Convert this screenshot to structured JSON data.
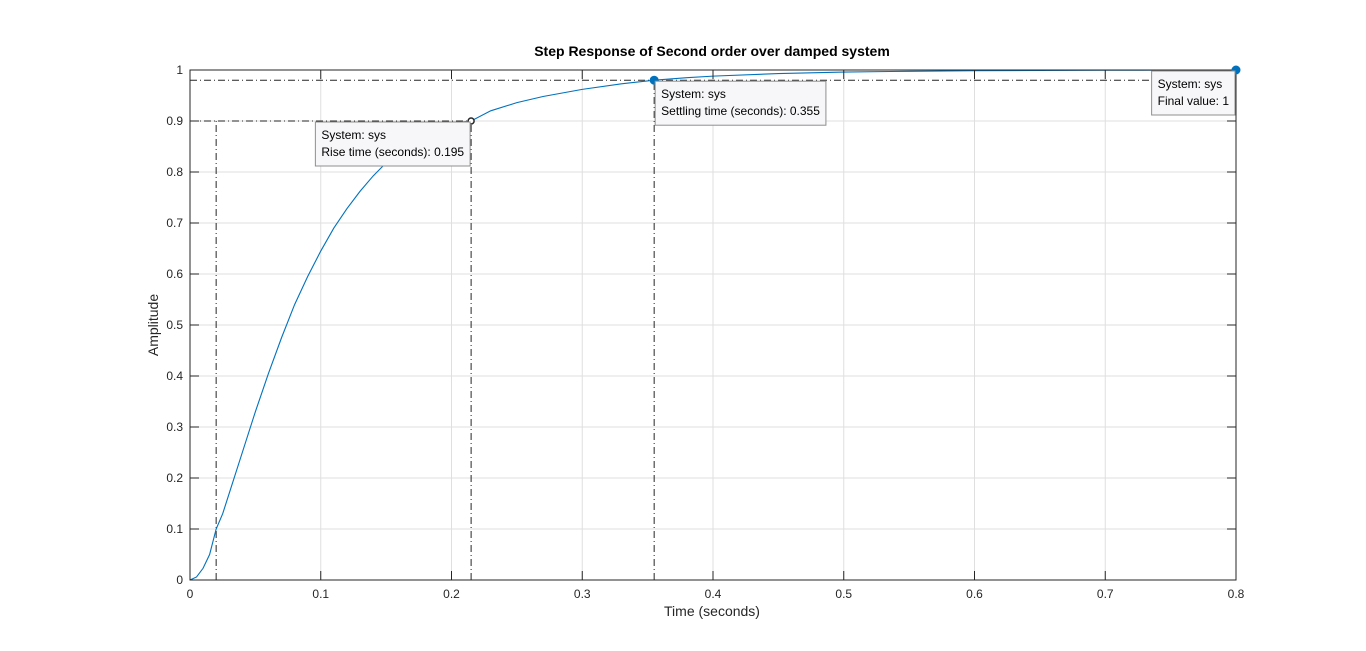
{
  "chart_data": {
    "type": "line",
    "title": "Step Response of Second order over damped system",
    "xlabel": "Time (seconds)",
    "ylabel": "Amplitude",
    "xlim": [
      0,
      0.8
    ],
    "ylim": [
      0,
      1
    ],
    "x_ticks": [
      "0",
      "0.1",
      "0.2",
      "0.3",
      "0.4",
      "0.5",
      "0.6",
      "0.7",
      "0.8"
    ],
    "y_ticks": [
      "0",
      "0.1",
      "0.2",
      "0.3",
      "0.4",
      "0.5",
      "0.6",
      "0.7",
      "0.8",
      "0.9",
      "1"
    ],
    "grid": true,
    "line_color": "#0072BD",
    "series": [
      {
        "x": [
          0,
          0.005,
          0.01,
          0.015,
          0.02,
          0.025,
          0.03,
          0.04,
          0.05,
          0.06,
          0.07,
          0.08,
          0.09,
          0.1,
          0.11,
          0.12,
          0.13,
          0.14,
          0.15,
          0.16,
          0.17,
          0.18,
          0.19,
          0.2,
          0.215,
          0.23,
          0.25,
          0.27,
          0.3,
          0.33,
          0.355,
          0.38,
          0.4,
          0.45,
          0.5,
          0.55,
          0.6,
          0.65,
          0.7,
          0.75,
          0.8
        ],
        "y": [
          0,
          0.006,
          0.023,
          0.05,
          0.1,
          0.13,
          0.17,
          0.25,
          0.33,
          0.405,
          0.475,
          0.54,
          0.595,
          0.645,
          0.69,
          0.728,
          0.762,
          0.792,
          0.818,
          0.84,
          0.858,
          0.873,
          0.886,
          0.896,
          0.9,
          0.92,
          0.936,
          0.948,
          0.962,
          0.973,
          0.98,
          0.985,
          0.988,
          0.993,
          0.996,
          0.9975,
          0.9985,
          0.9991,
          0.9995,
          0.9998,
          1.0
        ]
      }
    ],
    "reference_lines": [
      {
        "type": "h",
        "y": 0.9,
        "x0": 0,
        "x1": 0.215
      },
      {
        "type": "v",
        "x": 0.02,
        "y0": 0,
        "y1": 0.9
      },
      {
        "type": "v",
        "x": 0.215,
        "y0": 0,
        "y1": 0.9
      },
      {
        "type": "h",
        "y": 0.98,
        "x0": 0,
        "x1": 0.8
      },
      {
        "type": "v",
        "x": 0.355,
        "y0": 0,
        "y1": 0.98
      },
      {
        "type": "h_dotted",
        "y": 1.0,
        "x0": 0,
        "x1": 0.8
      }
    ],
    "datatips": [
      {
        "name": "rise",
        "point": {
          "x": 0.215,
          "y": 0.9
        },
        "marker": "hollow",
        "line1": "System: sys",
        "line2": "Rise time (seconds): 0.195",
        "anchor": "below-left"
      },
      {
        "name": "settling",
        "point": {
          "x": 0.355,
          "y": 0.98
        },
        "marker": "filled",
        "line1": "System: sys",
        "line2": "Settling time (seconds): 0.355",
        "anchor": "below-right"
      },
      {
        "name": "final",
        "point": {
          "x": 0.8,
          "y": 1.0
        },
        "marker": "filled",
        "line1": "System: sys",
        "line2": "Final value: 1",
        "anchor": "below-left"
      }
    ]
  }
}
